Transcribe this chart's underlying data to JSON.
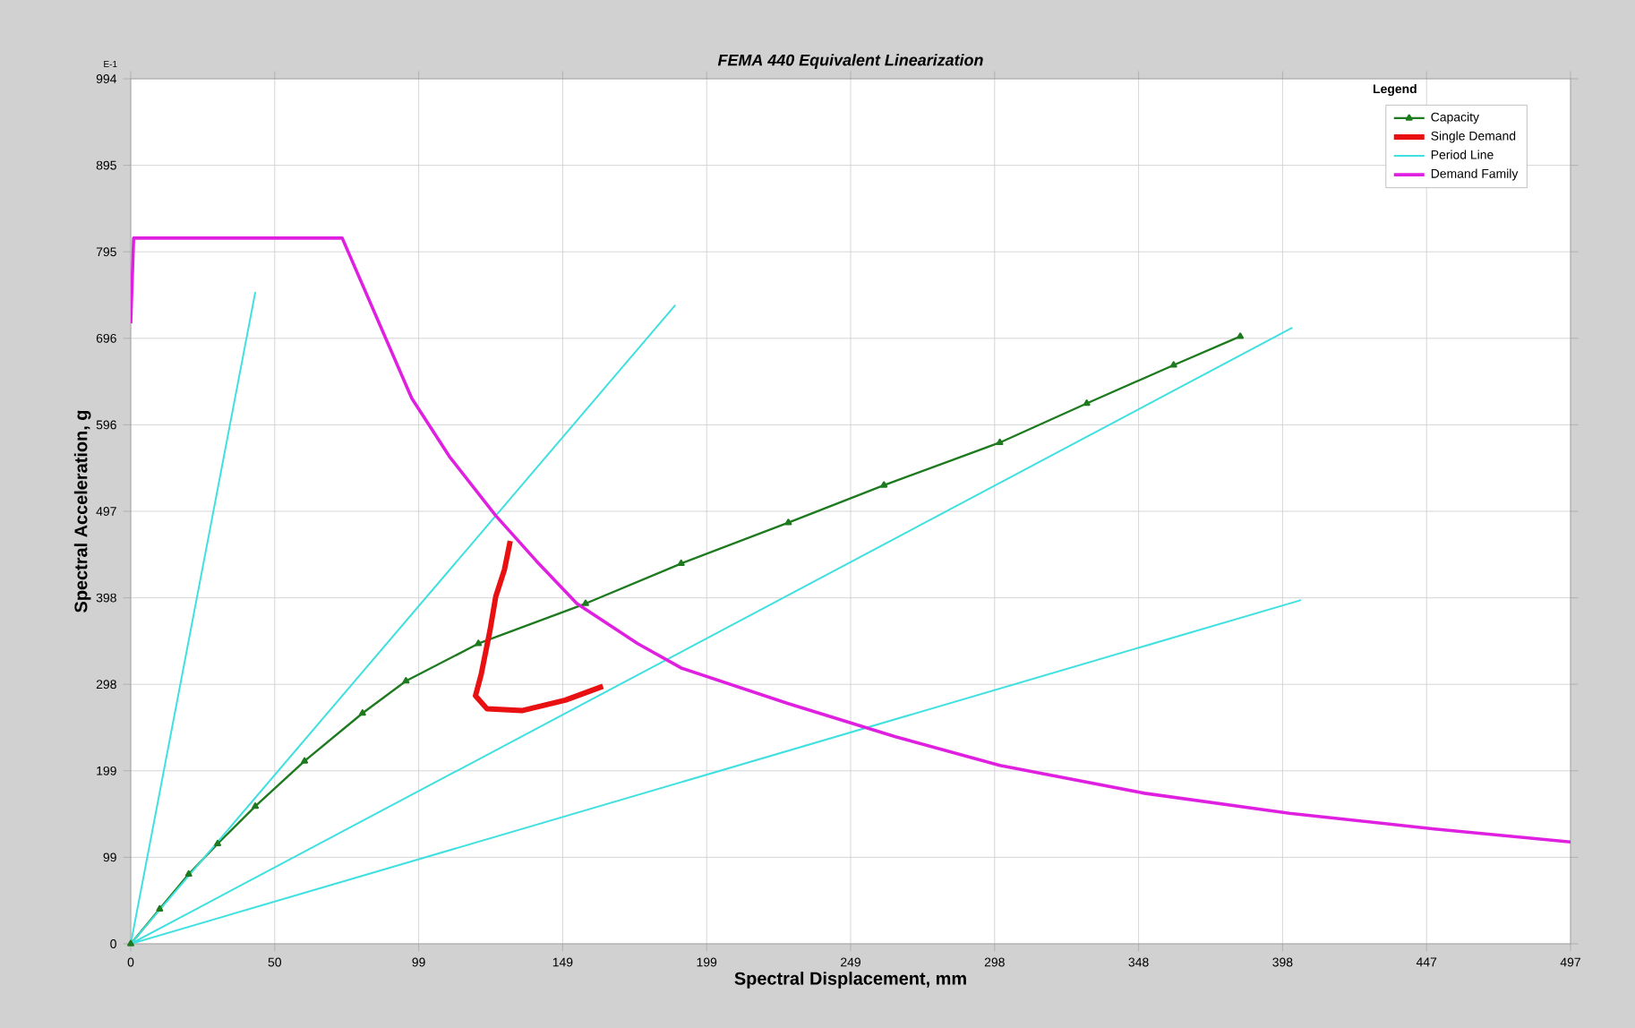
{
  "chart_data": {
    "type": "line",
    "title": "FEMA 440 Equivalent Linearization",
    "xlabel": "Spectral Displacement, mm",
    "ylabel": "Spectral Acceleration, g",
    "legend_title": "Legend",
    "annotations": [
      "E-1"
    ],
    "xlim": [
      0,
      497
    ],
    "ylim": [
      0,
      994
    ],
    "xticks": [
      0,
      {
        "value": 49.7,
        "label": "50"
      },
      {
        "value": 99.4,
        "label": "99"
      },
      {
        "value": 149.1,
        "label": "149"
      },
      {
        "value": 198.8,
        "label": "199"
      },
      {
        "value": 248.5,
        "label": "249"
      },
      {
        "value": 298.2,
        "label": "298"
      },
      {
        "value": 347.9,
        "label": "348"
      },
      {
        "value": 397.6,
        "label": "398"
      },
      {
        "value": 447.3,
        "label": "447"
      },
      497
    ],
    "yticks": [
      0,
      {
        "value": 99.4,
        "label": "99"
      },
      {
        "value": 198.8,
        "label": "199"
      },
      {
        "value": 298.2,
        "label": "298"
      },
      {
        "value": 397.6,
        "label": "398"
      },
      497,
      {
        "value": 596.4,
        "label": "596"
      },
      {
        "value": 695.8,
        "label": "696"
      },
      {
        "value": 795.2,
        "label": "795"
      },
      {
        "value": 894.6,
        "label": "895"
      },
      994
    ],
    "grid": true,
    "legend": "top right",
    "series": [
      {
        "name": "Capacity",
        "color": "#1e7a1e",
        "marker": "triangle",
        "x": [
          0,
          10,
          20,
          30,
          43,
          60,
          80,
          95,
          120,
          157,
          190,
          227,
          260,
          300,
          330,
          360,
          383
        ],
        "values": [
          0,
          40,
          80,
          115,
          158,
          210,
          265,
          302,
          345,
          391,
          437,
          484,
          527,
          576,
          621,
          665,
          698
        ]
      },
      {
        "name": "Single Demand",
        "color": "#e81010",
        "x": [
          131,
          129,
          126,
          124,
          121,
          119,
          123,
          135,
          150,
          163
        ],
        "values": [
          463,
          430,
          399,
          360,
          310,
          285,
          270,
          268,
          280,
          296
        ]
      },
      {
        "name": "Period Line",
        "color": "#40e0e0",
        "x": [
          0,
          43,
          null,
          0,
          188,
          null,
          0,
          401,
          null,
          0,
          404
        ],
        "values": [
          0,
          749,
          null,
          0,
          734,
          null,
          0,
          708,
          null,
          0,
          395
        ]
      },
      {
        "name": "Demand Family",
        "color": "#e020e0",
        "x": [
          0,
          1,
          73,
          97,
          110,
          126,
          140,
          154,
          175,
          190,
          227,
          264,
          300,
          350,
          400,
          450,
          497
        ],
        "values": [
          713,
          811,
          811,
          627,
          560,
          492,
          440,
          391,
          345,
          317,
          276,
          238,
          205,
          173,
          150,
          132,
          117
        ]
      }
    ]
  }
}
